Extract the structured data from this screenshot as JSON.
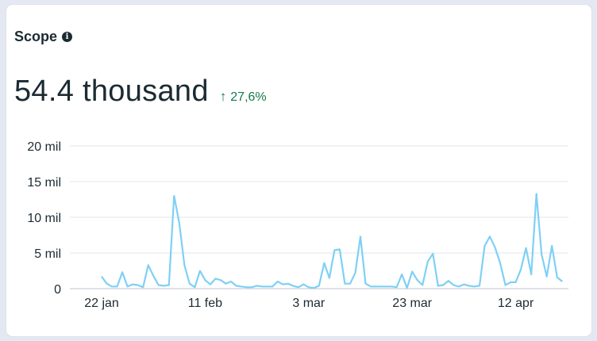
{
  "card": {
    "title": "Scope",
    "info_icon": "info-icon",
    "metric_value": "54.4 thousand",
    "delta": {
      "icon": "arrow-up-icon",
      "arrow": "↑",
      "text": "27,6%",
      "color": "#137a4b"
    }
  },
  "chart_data": {
    "type": "line",
    "title": "",
    "xlabel": "",
    "ylabel": "",
    "ylim": [
      0,
      20000
    ],
    "grid": true,
    "line_color": "#7fd0f5",
    "y_ticks": [
      {
        "value": 0,
        "label": "0"
      },
      {
        "value": 5000,
        "label": "5 mil"
      },
      {
        "value": 10000,
        "label": "10 mil"
      },
      {
        "value": 15000,
        "label": "15 mil"
      },
      {
        "value": 20000,
        "label": "20 mil"
      }
    ],
    "x_ticks": [
      {
        "x": "2025-01-22",
        "label": "22 jan"
      },
      {
        "x": "2025-02-11",
        "label": "11 feb"
      },
      {
        "x": "2025-03-03",
        "label": "3 mar"
      },
      {
        "x": "2025-03-23",
        "label": "23 mar"
      },
      {
        "x": "2025-04-12",
        "label": "12 apr"
      }
    ],
    "series": [
      {
        "points": [
          [
            "2025-01-22",
            1700
          ],
          [
            "2025-01-23",
            700
          ],
          [
            "2025-01-24",
            300
          ],
          [
            "2025-01-25",
            300
          ],
          [
            "2025-01-26",
            2300
          ],
          [
            "2025-01-27",
            300
          ],
          [
            "2025-01-28",
            600
          ],
          [
            "2025-01-29",
            500
          ],
          [
            "2025-01-30",
            200
          ],
          [
            "2025-01-31",
            3300
          ],
          [
            "2025-02-01",
            1800
          ],
          [
            "2025-02-02",
            500
          ],
          [
            "2025-02-03",
            400
          ],
          [
            "2025-02-04",
            500
          ],
          [
            "2025-02-05",
            13000
          ],
          [
            "2025-02-06",
            9200
          ],
          [
            "2025-02-07",
            3300
          ],
          [
            "2025-02-08",
            700
          ],
          [
            "2025-02-09",
            200
          ],
          [
            "2025-02-10",
            2500
          ],
          [
            "2025-02-11",
            1200
          ],
          [
            "2025-02-12",
            600
          ],
          [
            "2025-02-13",
            1400
          ],
          [
            "2025-02-14",
            1200
          ],
          [
            "2025-02-15",
            700
          ],
          [
            "2025-02-16",
            1000
          ],
          [
            "2025-02-17",
            400
          ],
          [
            "2025-02-18",
            300
          ],
          [
            "2025-02-19",
            200
          ],
          [
            "2025-02-20",
            200
          ],
          [
            "2025-02-21",
            400
          ],
          [
            "2025-02-22",
            300
          ],
          [
            "2025-02-23",
            300
          ],
          [
            "2025-02-24",
            300
          ],
          [
            "2025-02-25",
            1000
          ],
          [
            "2025-02-26",
            600
          ],
          [
            "2025-02-27",
            700
          ],
          [
            "2025-02-28",
            400
          ],
          [
            "2025-03-01",
            200
          ],
          [
            "2025-03-02",
            600
          ],
          [
            "2025-03-03",
            200
          ],
          [
            "2025-03-04",
            100
          ],
          [
            "2025-03-05",
            400
          ],
          [
            "2025-03-06",
            3600
          ],
          [
            "2025-03-07",
            1500
          ],
          [
            "2025-03-08",
            5400
          ],
          [
            "2025-03-09",
            5500
          ],
          [
            "2025-03-10",
            700
          ],
          [
            "2025-03-11",
            700
          ],
          [
            "2025-03-12",
            2200
          ],
          [
            "2025-03-13",
            7300
          ],
          [
            "2025-03-14",
            700
          ],
          [
            "2025-03-15",
            300
          ],
          [
            "2025-03-16",
            300
          ],
          [
            "2025-03-17",
            300
          ],
          [
            "2025-03-18",
            300
          ],
          [
            "2025-03-19",
            300
          ],
          [
            "2025-03-20",
            200
          ],
          [
            "2025-03-21",
            2000
          ],
          [
            "2025-03-22",
            100
          ],
          [
            "2025-03-23",
            2400
          ],
          [
            "2025-03-24",
            1200
          ],
          [
            "2025-03-25",
            500
          ],
          [
            "2025-03-26",
            3800
          ],
          [
            "2025-03-27",
            4900
          ],
          [
            "2025-03-28",
            400
          ],
          [
            "2025-03-29",
            500
          ],
          [
            "2025-03-30",
            1100
          ],
          [
            "2025-03-31",
            500
          ],
          [
            "2025-04-01",
            300
          ],
          [
            "2025-04-02",
            600
          ],
          [
            "2025-04-03",
            400
          ],
          [
            "2025-04-04",
            300
          ],
          [
            "2025-04-05",
            400
          ],
          [
            "2025-04-06",
            6000
          ],
          [
            "2025-04-07",
            7300
          ],
          [
            "2025-04-08",
            5800
          ],
          [
            "2025-04-09",
            3600
          ],
          [
            "2025-04-10",
            500
          ],
          [
            "2025-04-11",
            900
          ],
          [
            "2025-04-12",
            900
          ],
          [
            "2025-04-13",
            2700
          ],
          [
            "2025-04-14",
            5700
          ],
          [
            "2025-04-15",
            2000
          ],
          [
            "2025-04-16",
            13300
          ],
          [
            "2025-04-17",
            4800
          ],
          [
            "2025-04-18",
            1700
          ],
          [
            "2025-04-19",
            6000
          ],
          [
            "2025-04-20",
            1600
          ],
          [
            "2025-04-21",
            1000
          ]
        ]
      }
    ]
  }
}
